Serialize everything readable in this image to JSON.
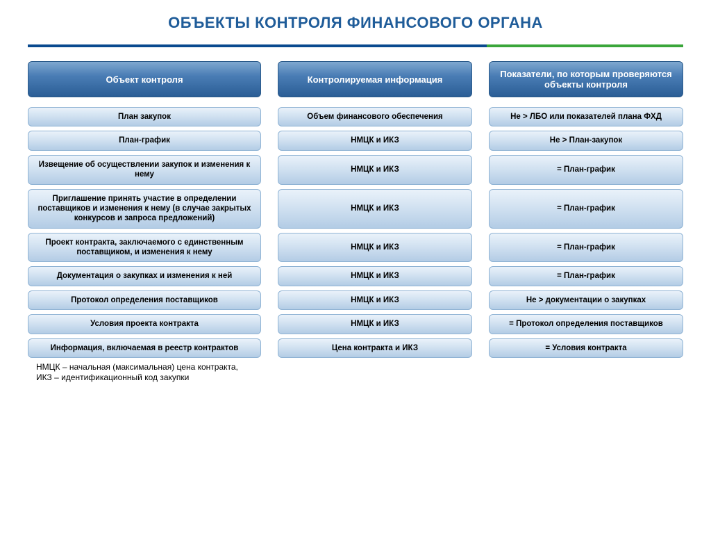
{
  "title": "ОБЪЕКТЫ КОНТРОЛЯ ФИНАНСОВОГО ОРГАНА",
  "styling": {
    "title_color": "#1f5c99",
    "title_fontsize": 22,
    "divider_primary": "#0a4a8f",
    "divider_secondary": "#3aa63a",
    "header_gradient_top": "#7fa8d0",
    "header_gradient_mid": "#4a7db5",
    "header_gradient_bottom": "#2a5d95",
    "header_text_color": "#ffffff",
    "cell_gradient_top": "#eaf2fa",
    "cell_gradient_mid": "#cfe0f0",
    "cell_gradient_bottom": "#b3cce5",
    "cell_border_color": "#8fb3d4",
    "cell_text_color": "#000000",
    "cell_fontsize": 11.5,
    "header_fontsize": 13,
    "border_radius": 6,
    "column_gap": 24
  },
  "headers": [
    "Объект контроля",
    "Контролируемая информация",
    "Показатели, по которым проверяются объекты контроля"
  ],
  "rows": [
    {
      "object": "План закупок",
      "info": "Объем финансового обеспечения",
      "indicator": "Не > ЛБО или показателей плана ФХД"
    },
    {
      "object": "План-график",
      "info": "НМЦК и ИКЗ",
      "indicator": "Не > План-закупок"
    },
    {
      "object": "Извещение об осуществлении закупок и изменения к нему",
      "info": "НМЦК и ИКЗ",
      "indicator": "= План-график"
    },
    {
      "object": "Приглашение принять участие в определении поставщиков и изменения к нему (в случае закрытых конкурсов и запроса предложений)",
      "info": "НМЦК и ИКЗ",
      "indicator": "= План-график"
    },
    {
      "object": "Проект контракта, заключаемого с единственным поставщиком, и изменения к нему",
      "info": "НМЦК и ИКЗ",
      "indicator": "= План-график"
    },
    {
      "object": "Документация о закупках и изменения к ней",
      "info": "НМЦК и ИКЗ",
      "indicator": "= План-график"
    },
    {
      "object": "Протокол определения поставщиков",
      "info": "НМЦК и ИКЗ",
      "indicator": "Не > документации о закупках"
    },
    {
      "object": "Условия проекта контракта",
      "info": "НМЦК и ИКЗ",
      "indicator": "= Протокол определения поставщиков"
    },
    {
      "object": "Информация, включаемая в реестр контрактов",
      "info": "Цена контракта и ИКЗ",
      "indicator": "= Условия контракта"
    }
  ],
  "footnote_line1": "НМЦК – начальная (максимальная) цена контракта,",
  "footnote_line2": "ИКЗ – идентификационный код закупки"
}
